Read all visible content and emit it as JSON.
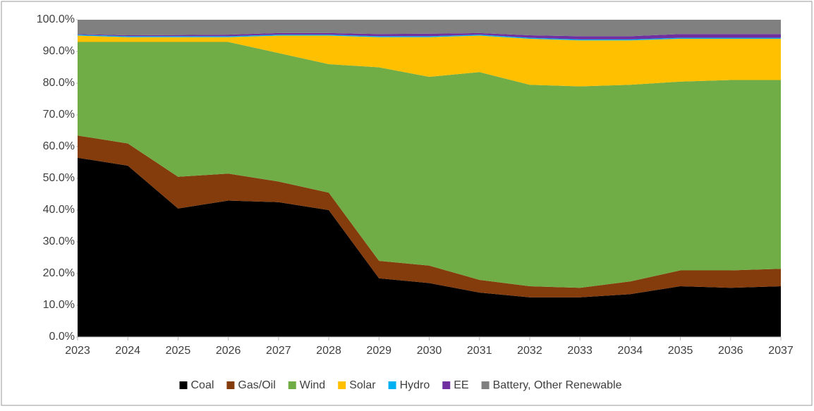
{
  "chart_data": {
    "type": "stacked_area",
    "categories": [
      "2023",
      "2024",
      "2025",
      "2026",
      "2027",
      "2028",
      "2029",
      "2030",
      "2031",
      "2032",
      "2033",
      "2034",
      "2035",
      "2036",
      "2037"
    ],
    "series": [
      {
        "name": "Coal",
        "color": "#000000",
        "values": [
          56.5,
          54,
          40.5,
          43,
          42.5,
          40,
          18.5,
          17,
          14,
          12.5,
          12.5,
          13.5,
          16,
          15.5,
          16
        ]
      },
      {
        "name": "Gas/Oil",
        "color": "#843c0c",
        "values": [
          7,
          7,
          10,
          8.5,
          6.5,
          5.5,
          5.5,
          5.5,
          4,
          3.5,
          3,
          4,
          5,
          5.5,
          5.5
        ]
      },
      {
        "name": "Wind",
        "color": "#70ad47",
        "values": [
          29.5,
          32,
          42.5,
          41.5,
          40.5,
          40.5,
          61,
          59.5,
          65.5,
          63.5,
          63.5,
          62,
          59.5,
          60,
          59.5
        ]
      },
      {
        "name": "Solar",
        "color": "#ffc000",
        "values": [
          2,
          1.5,
          1.5,
          1.5,
          5.5,
          9,
          9.5,
          12.5,
          11.5,
          14.5,
          14.5,
          14,
          13.5,
          13,
          13
        ]
      },
      {
        "name": "Hydro",
        "color": "#00b0f0",
        "values": [
          0.3,
          0.3,
          0.3,
          0.3,
          0.3,
          0.3,
          0.3,
          0.3,
          0.3,
          0.3,
          0.3,
          0.3,
          0.3,
          0.3,
          0.3
        ]
      },
      {
        "name": "EE",
        "color": "#7030a0",
        "values": [
          0.2,
          0.3,
          0.4,
          0.5,
          0.5,
          0.5,
          0.7,
          0.8,
          0.5,
          0.8,
          1,
          1,
          1.2,
          1.2,
          1.2
        ]
      },
      {
        "name": "Battery, Other Renewable",
        "color": "#808080",
        "values": [
          4.5,
          4.9,
          4.8,
          4.7,
          4.2,
          4.2,
          4.5,
          4.4,
          4.2,
          4.9,
          5.2,
          5.2,
          4.5,
          4.5,
          4.5
        ]
      }
    ],
    "ylim": [
      0,
      100
    ],
    "yticks": [
      {
        "value": 0,
        "label": "0.0%"
      },
      {
        "value": 10,
        "label": "10.0%"
      },
      {
        "value": 20,
        "label": "20.0%"
      },
      {
        "value": 30,
        "label": "30.0%"
      },
      {
        "value": 40,
        "label": "40.0%"
      },
      {
        "value": 50,
        "label": "50.0%"
      },
      {
        "value": 60,
        "label": "60.0%"
      },
      {
        "value": 70,
        "label": "70.0%"
      },
      {
        "value": 80,
        "label": "80.0%"
      },
      {
        "value": 90,
        "label": "90.0%"
      },
      {
        "value": 100,
        "label": "100.0%"
      }
    ],
    "grid": false,
    "legend": "bottom"
  }
}
